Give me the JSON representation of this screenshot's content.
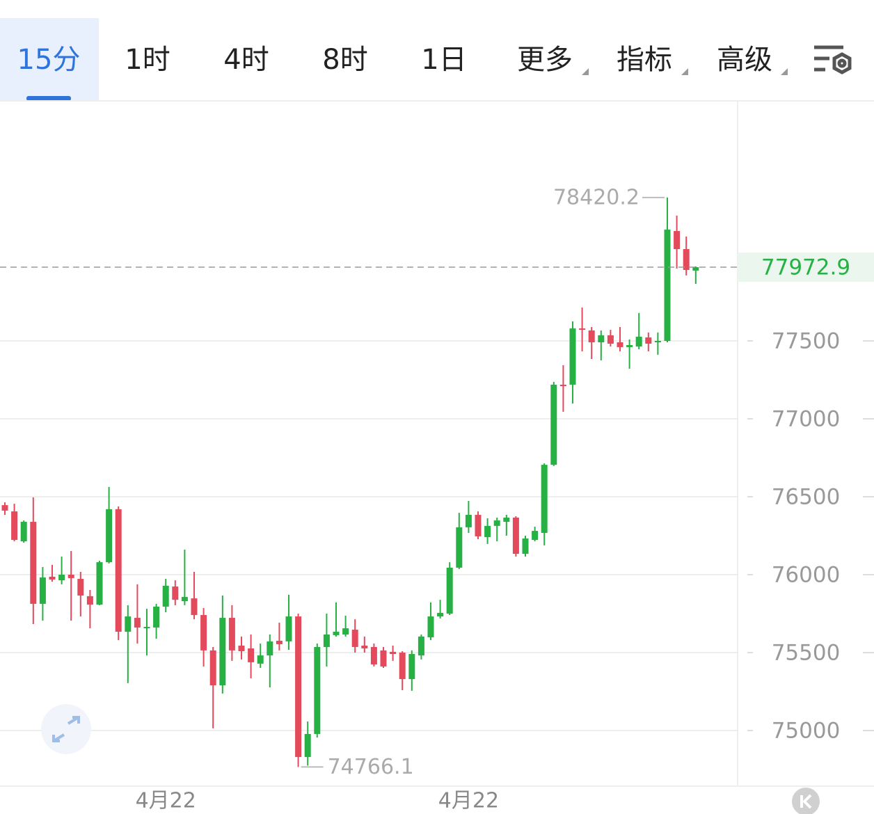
{
  "toolbar": {
    "tabs": [
      "15分",
      "1时",
      "4时",
      "8时",
      "1日",
      "更多",
      "指标",
      "高级"
    ],
    "selected": 0
  },
  "chart_data": {
    "type": "candlestick",
    "categories": [
      null,
      null,
      null,
      null,
      null,
      null,
      null,
      null,
      null,
      null,
      null,
      null,
      null,
      null,
      null,
      null,
      null,
      "4月22",
      null,
      null,
      null,
      null,
      null,
      null,
      null,
      null,
      null,
      null,
      null,
      null,
      null,
      null,
      null,
      null,
      null,
      null,
      null,
      null,
      null,
      null,
      null,
      null,
      null,
      null,
      null,
      null,
      null,
      null,
      null,
      "4月22",
      null,
      null,
      null,
      null,
      null,
      null,
      null,
      null,
      null,
      null,
      null,
      null,
      null,
      null,
      null,
      null,
      null,
      null,
      null,
      null,
      null,
      null,
      null,
      null
    ],
    "open": [
      76446,
      76406,
      76214,
      76339,
      75813,
      75987,
      75964,
      76000,
      75973,
      75862,
      75808,
      76080,
      76420,
      75634,
      75723,
      75656,
      75661,
      75795,
      75924,
      75830,
      75848,
      75741,
      75514,
      75290,
      75723,
      75545,
      75527,
      75429,
      75482,
      75576,
      75572,
      75732,
      74830,
      74978,
      75536,
      75612,
      75616,
      75647,
      75545,
      75536,
      75514,
      75505,
      75500,
      75330,
      75482,
      75598,
      75732,
      75750,
      76045,
      76304,
      76384,
      76241,
      76313,
      76339,
      76366,
      76134,
      76223,
      76268,
      76705,
      77219,
      77219,
      77580,
      77567,
      77491,
      77536,
      77491,
      77460,
      77464,
      77522,
      77491,
      77500,
      78205,
      78089,
      77951
    ],
    "high": [
      76464,
      76455,
      76348,
      76496,
      76049,
      76063,
      76116,
      76152,
      76018,
      75902,
      76089,
      76563,
      76438,
      75804,
      75938,
      75781,
      75813,
      75973,
      75964,
      76161,
      76018,
      75786,
      75536,
      75866,
      75804,
      75603,
      75616,
      75558,
      75616,
      75692,
      75871,
      75750,
      75058,
      75558,
      75750,
      75822,
      75737,
      75714,
      75603,
      75558,
      75536,
      75545,
      75509,
      75514,
      75616,
      75822,
      75839,
      76080,
      76397,
      76473,
      76406,
      76362,
      76366,
      76384,
      76375,
      76250,
      76308,
      76714,
      77237,
      77344,
      77625,
      77714,
      77589,
      77567,
      77571,
      77589,
      77509,
      77679,
      77554,
      77554,
      78420.2,
      78304,
      78170,
      77978
    ],
    "low": [
      76384,
      76214,
      76205,
      75683,
      75705,
      75955,
      75938,
      75705,
      75732,
      75656,
      75804,
      76072,
      75580,
      75304,
      75558,
      75482,
      75589,
      75759,
      75804,
      75804,
      75714,
      75411,
      75014,
      75237,
      75447,
      75456,
      75335,
      75402,
      75277,
      75514,
      75518,
      74766.1,
      74775,
      74955,
      75411,
      75603,
      75603,
      75500,
      75500,
      75411,
      75402,
      75447,
      75259,
      75255,
      75456,
      75580,
      75719,
      75741,
      76036,
      76268,
      76228,
      76197,
      76214,
      76250,
      76116,
      76116,
      76214,
      76188,
      76697,
      77045,
      77098,
      77433,
      77384,
      77375,
      77464,
      77433,
      77321,
      77446,
      77433,
      77411,
      77491,
      77964,
      77920,
      77866
    ],
    "close": [
      76411,
      76223,
      76339,
      75813,
      75982,
      75969,
      76000,
      75978,
      75866,
      75808,
      76080,
      76420,
      75634,
      75732,
      75661,
      75665,
      75795,
      75929,
      75839,
      75857,
      75741,
      75514,
      75290,
      75723,
      75514,
      75509,
      75438,
      75482,
      75572,
      75554,
      75732,
      74830,
      74978,
      75536,
      75616,
      75634,
      75656,
      75536,
      75527,
      75424,
      75411,
      75491,
      75330,
      75491,
      75603,
      75732,
      75755,
      76045,
      76304,
      76384,
      76246,
      76313,
      76348,
      76366,
      76134,
      76232,
      76281,
      76705,
      77219,
      77210,
      77580,
      77571,
      77491,
      77536,
      77482,
      77460,
      77473,
      77527,
      77482,
      77500,
      78214,
      78089,
      77955,
      77972.9
    ],
    "up_color": "#27b043",
    "down_color": "#e34a5b",
    "ylim": [
      74643,
      79040
    ],
    "yticks": [
      75000,
      75500,
      76000,
      76500,
      77000,
      77500
    ],
    "grid": true,
    "last_price_line": true
  }
}
